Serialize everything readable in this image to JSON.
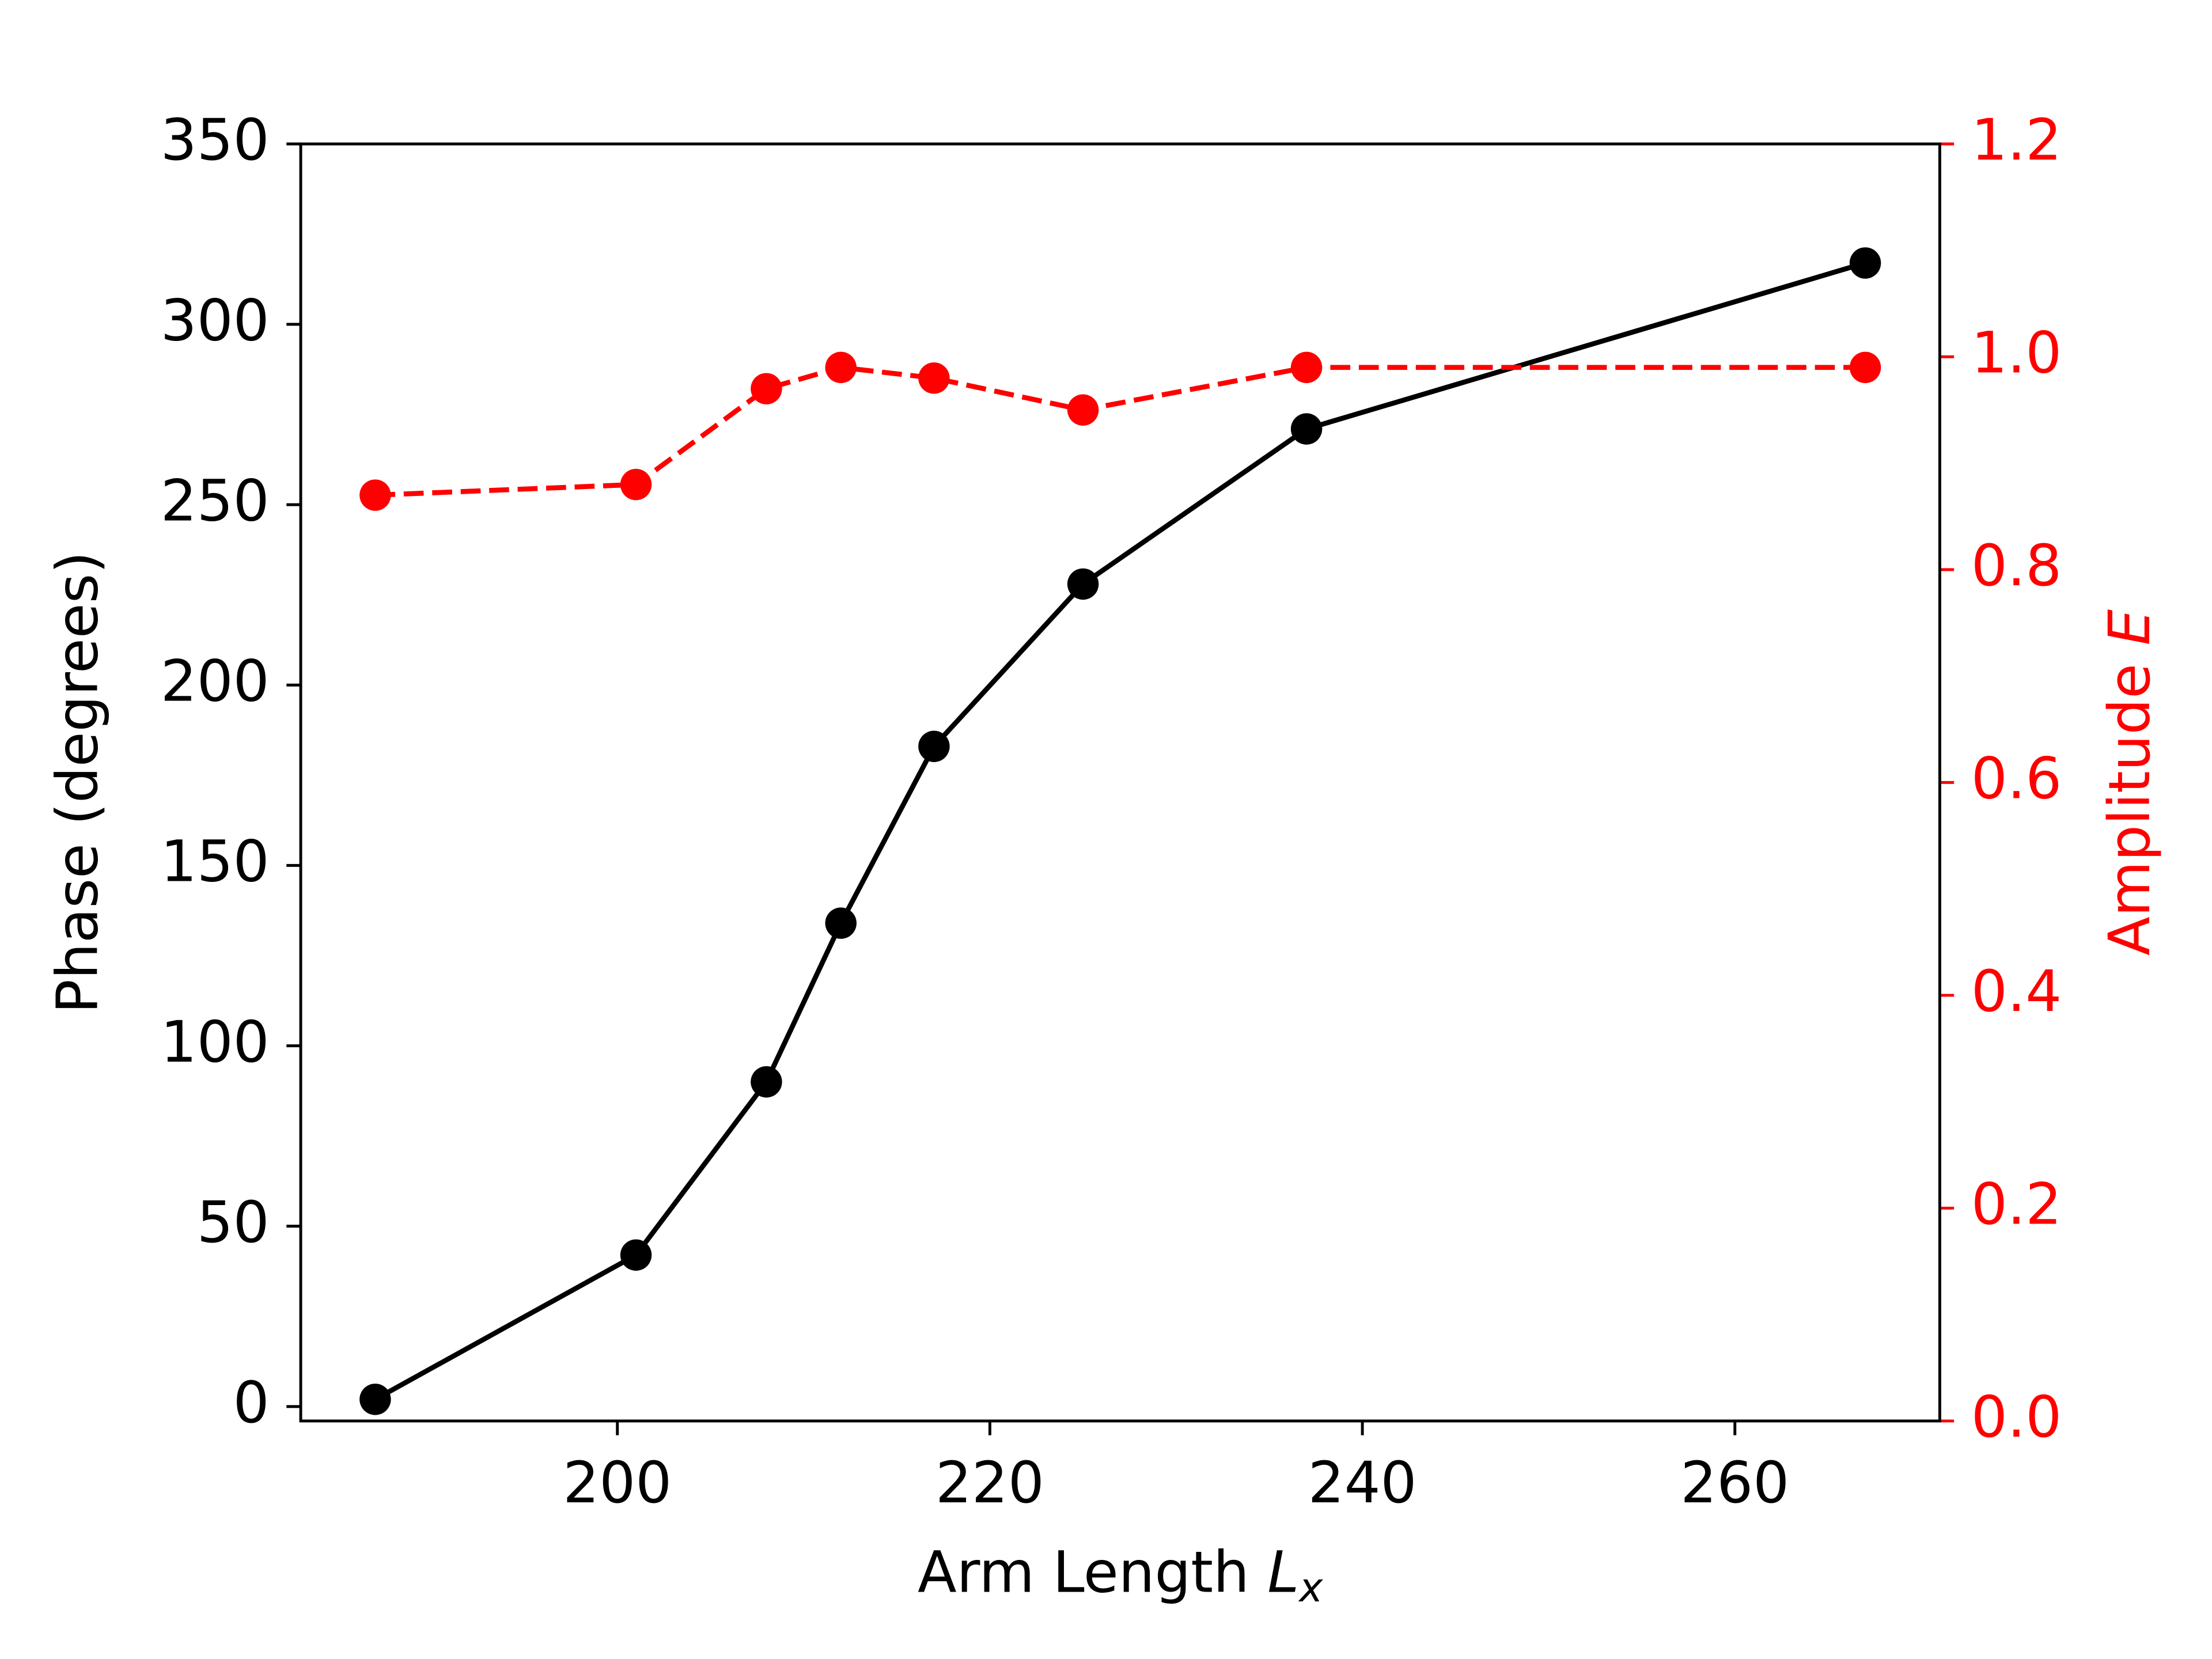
{
  "chart_data": {
    "type": "line",
    "xlabel": "Arm Length",
    "xlabel_symbol": "L",
    "xlabel_subscript": "x",
    "ylabel": "Phase (degrees)",
    "y2label": "Amplitude",
    "y2label_symbol": "E",
    "y2color": "#ff0000",
    "x": [
      187,
      201,
      208,
      212,
      217,
      225,
      237,
      267
    ],
    "series": [
      {
        "name": "Phase",
        "color": "#000000",
        "linestyle": "solid",
        "values": [
          2,
          42,
          90,
          134,
          183,
          228,
          271,
          317
        ]
      },
      {
        "name": "Amplitude",
        "color": "#ff0000",
        "linestyle": "dashed",
        "axis": "y2",
        "values": [
          0.87,
          0.88,
          0.97,
          0.99,
          0.98,
          0.95,
          0.99,
          0.99
        ]
      }
    ],
    "xlim": [
      183,
      271
    ],
    "xticks": [
      200,
      220,
      240,
      260
    ],
    "ylim": [
      -4,
      350
    ],
    "yticks": [
      0,
      50,
      100,
      150,
      200,
      250,
      300,
      350
    ],
    "y2lim": [
      0,
      1.2
    ],
    "y2ticks": [
      {
        "value": 0,
        "label": "0.0"
      },
      {
        "value": 0.2,
        "label": "0.2"
      },
      {
        "value": 0.4,
        "label": "0.4"
      },
      {
        "value": 0.6,
        "label": "0.6"
      },
      {
        "value": 0.8,
        "label": "0.8"
      },
      {
        "value": 1,
        "label": "1.0"
      },
      {
        "value": 1.2,
        "label": "1.2"
      }
    ],
    "grid": false
  }
}
